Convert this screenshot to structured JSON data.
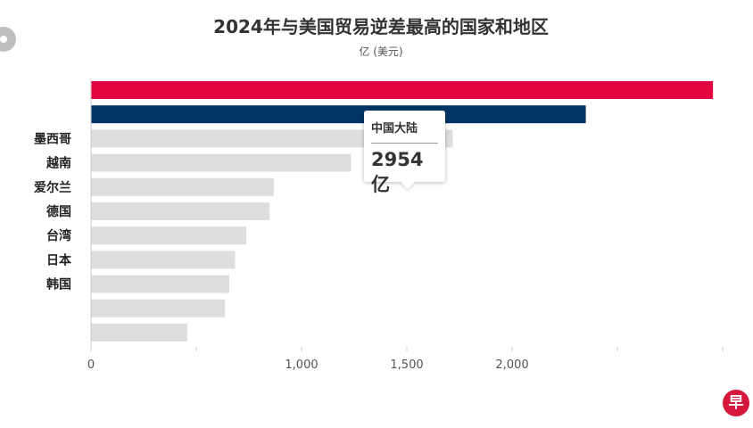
{
  "chart_data": {
    "type": "bar",
    "orientation": "horizontal",
    "title": "2024年与美国贸易逆差最高的国家和地区",
    "subtitle": "亿 (美元)",
    "categories": [
      "",
      "",
      "墨西哥",
      "越南",
      "爱尔兰",
      "德国",
      "台湾",
      "日本",
      "韩国",
      "",
      ""
    ],
    "values": [
      2954,
      2350,
      1718,
      1235,
      868,
      848,
      738,
      684,
      657,
      637,
      457
    ],
    "highlight_index": 0,
    "xlim": [
      0,
      3000
    ],
    "xticks": [
      0,
      500,
      1000,
      1500,
      2000,
      2500,
      3000
    ],
    "xtick_labels": [
      "0",
      "",
      "1,000",
      "1,500",
      "2,000",
      "",
      ""
    ],
    "grid": false,
    "colors": {
      "highlight": "#e1063f",
      "second": "#003565",
      "default": "#dedede"
    }
  },
  "tooltip": {
    "name": "中国大陆",
    "value": "2954亿"
  },
  "logo": {
    "text": "早",
    "color": "#d6163a"
  }
}
